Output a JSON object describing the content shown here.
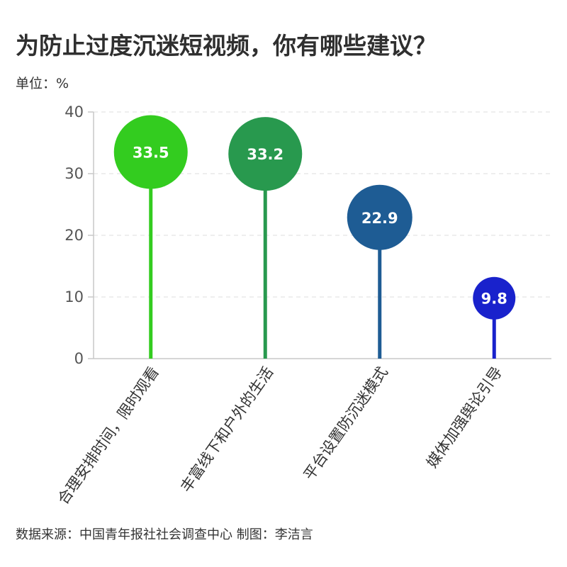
{
  "title": "为防止过度沉迷短视频，你有哪些建议？",
  "unit_label": "单位：%",
  "source": "数据来源：中国青年报社社会调查中心 制图：李洁言",
  "chart_data": {
    "type": "lollipop",
    "title": "为防止过度沉迷短视频，你有哪些建议？",
    "ylabel": "单位：%",
    "ylim": [
      0,
      40
    ],
    "yticks": [
      0,
      10,
      20,
      30,
      40
    ],
    "grid": true,
    "categories": [
      "合理安排时间，限时观看",
      "丰富线下和户外的生活",
      "平台设置防沉迷模式",
      "媒体加强舆论引导"
    ],
    "values": [
      33.5,
      33.2,
      22.9,
      9.8
    ],
    "colors": [
      "#33cc1f",
      "#28994e",
      "#1e5c94",
      "#1922cc"
    ]
  }
}
